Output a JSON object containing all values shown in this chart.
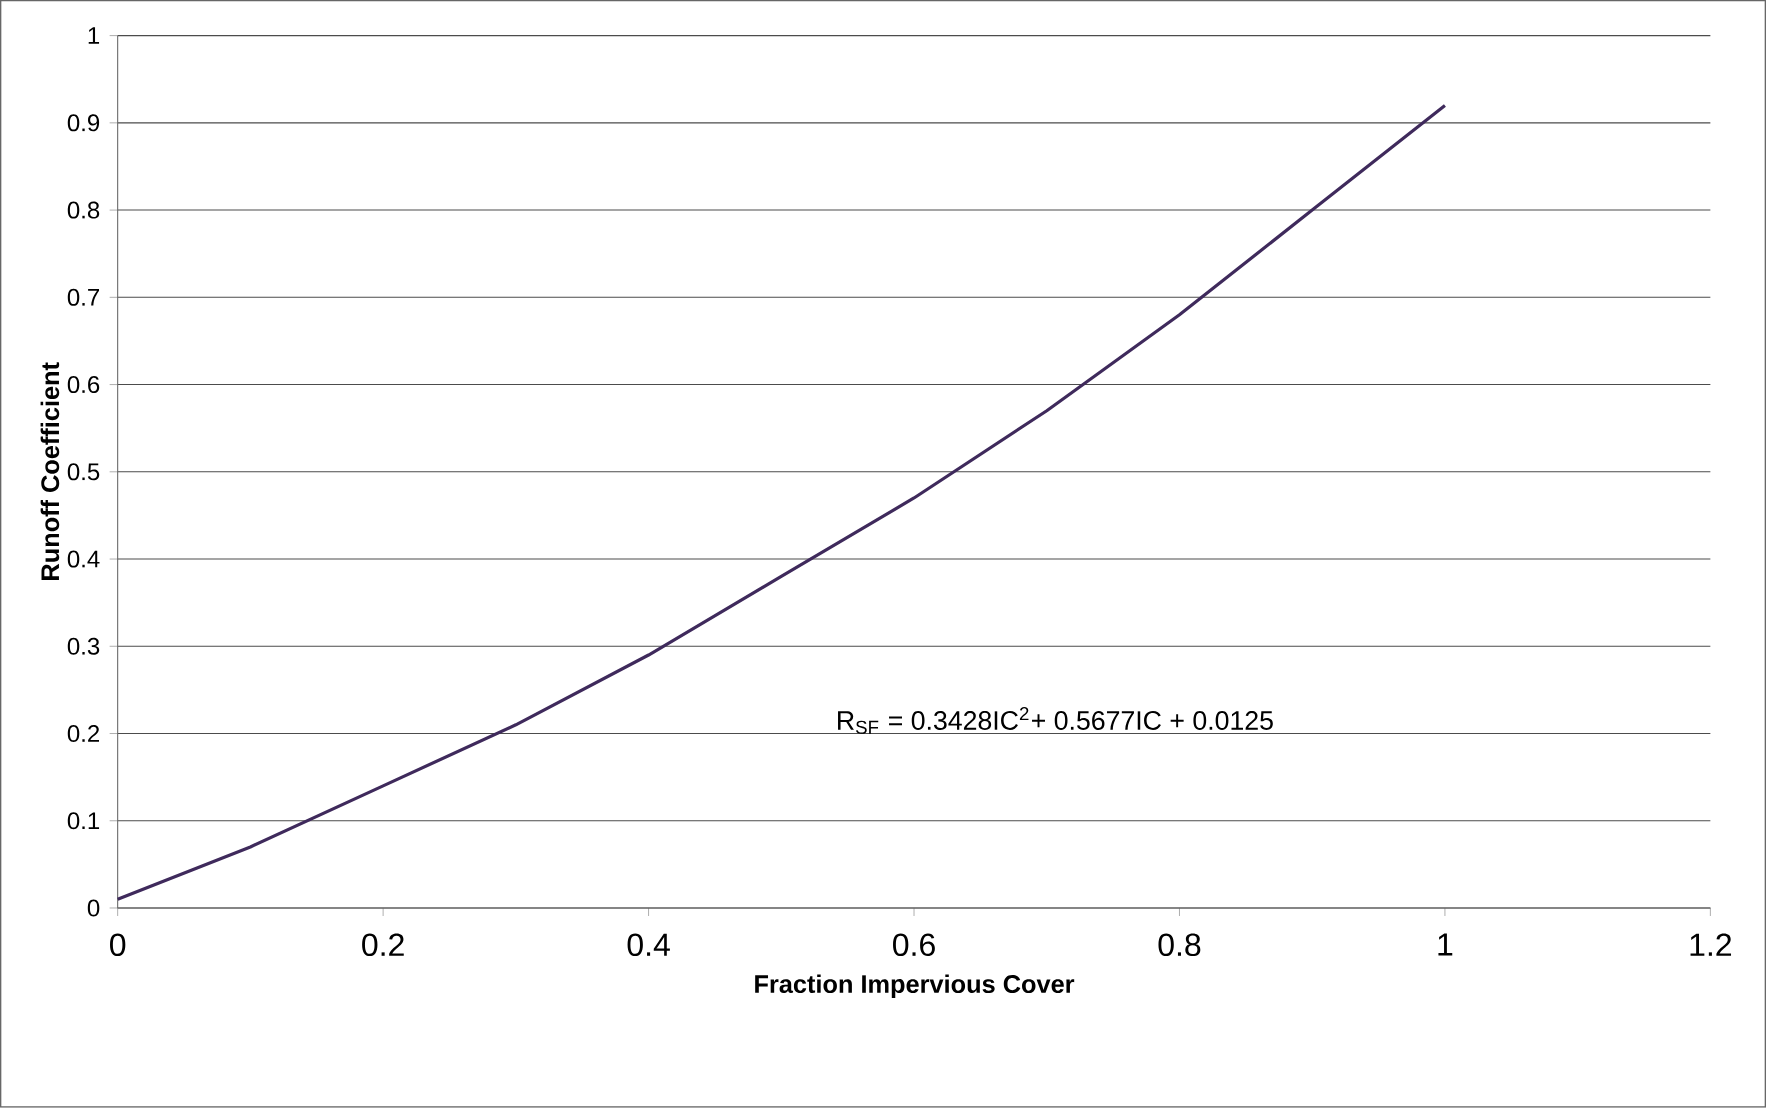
{
  "chart_data": {
    "type": "line",
    "xlabel": "Fraction Impervious Cover",
    "ylabel": "Runoff Coefficient",
    "x": [
      0,
      0.1,
      0.2,
      0.3,
      0.4,
      0.5,
      0.6,
      0.7,
      0.8,
      0.9,
      1.0
    ],
    "values": [
      0.01,
      0.07,
      0.14,
      0.21,
      0.29,
      0.38,
      0.47,
      0.57,
      0.68,
      0.8,
      0.92
    ],
    "color": "#3f2a5c",
    "marker": "none",
    "line_style": "solid",
    "grid": "y",
    "xlim": [
      0,
      1.2
    ],
    "xticks": [
      0,
      0.2,
      0.4,
      0.6,
      0.8,
      1,
      1.2
    ],
    "ylim": [
      0,
      1
    ],
    "yticks": [
      0,
      0.1,
      0.2,
      0.3,
      0.4,
      0.5,
      0.6,
      0.7,
      0.8,
      0.9,
      1
    ],
    "annotations": [
      "R$_{SF}$ = 0.3428IC$^{2}$+ 0.5677IC + 0.0125"
    ]
  }
}
